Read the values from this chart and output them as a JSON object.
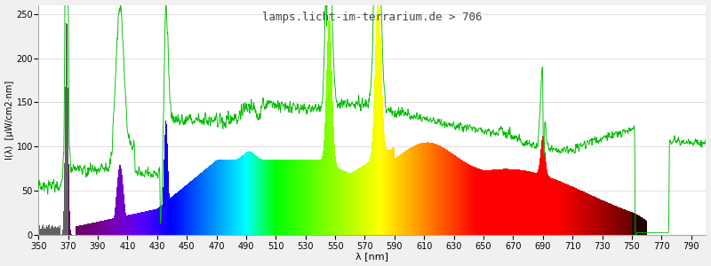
{
  "title": "lamps.licht-im-terrarium.de > 706",
  "xlabel": "λ [nm]",
  "ylabel": "I(λ)  [µW/cm2·nm]",
  "xmin": 350,
  "xmax": 800,
  "ymin": 0,
  "ymax": 260,
  "yticks": [
    0,
    50,
    100,
    150,
    200,
    250
  ],
  "xticks": [
    350,
    370,
    390,
    410,
    430,
    450,
    470,
    490,
    510,
    530,
    550,
    570,
    590,
    610,
    630,
    650,
    670,
    690,
    710,
    730,
    750,
    770,
    790
  ],
  "background_color": "#f0f0f0",
  "plot_bg_color": "#ffffff",
  "grid_color": "#e0e0e0",
  "title_color": "#444444",
  "line_color": "#00bb00",
  "title_fontsize": 9,
  "axis_fontsize": 8,
  "tick_fontsize": 7
}
